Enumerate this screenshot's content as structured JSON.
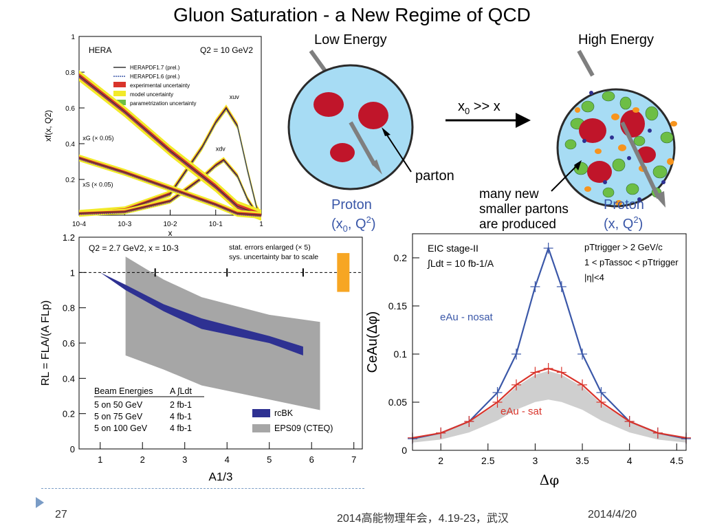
{
  "title": "Gluon Saturation - a New Regime of QCD",
  "footer": {
    "page_number": "27",
    "conference": "2014高能物理年会，4.19-23，武汉",
    "date": "2014/4/20"
  },
  "schematic": {
    "low_energy_label": "Low Energy",
    "high_energy_label": "High Energy",
    "arrow_label": "x0 >> x",
    "parton_label": "parton",
    "new_partons_label": [
      "many new",
      "smaller partons",
      "are produced"
    ],
    "proton_low": [
      "Proton",
      "(x0, Q2)"
    ],
    "proton_high": [
      "Proton",
      "(x, Q2)"
    ]
  },
  "chart_data": [
    {
      "type": "line",
      "title": "HERA",
      "annotation": "Q2 = 10 GeV2",
      "xlabel": "x",
      "ylabel": "xf(x, Q2)",
      "xscale": "log",
      "xlim": [
        0.0001,
        1
      ],
      "ylim": [
        0,
        1
      ],
      "x_ticks": [
        "10-4",
        "10-3",
        "10-2",
        "10-1",
        "1"
      ],
      "y_ticks": [
        "0.2",
        "0.4",
        "0.6",
        "0.8",
        "1"
      ],
      "legend": [
        "HERAPDF1.7 (prel.)",
        "HERAPDF1.6 (prel.)",
        "experimental uncertainty",
        "model uncertainty",
        "parametrization uncertainty"
      ],
      "series": [
        {
          "name": "xuv",
          "x": [
            0.0001,
            0.001,
            0.01,
            0.05,
            0.1,
            0.17,
            0.3,
            0.5,
            0.8,
            1
          ],
          "y": [
            0.01,
            0.03,
            0.12,
            0.38,
            0.52,
            0.6,
            0.5,
            0.25,
            0.04,
            0
          ]
        },
        {
          "name": "xdv",
          "x": [
            0.0001,
            0.001,
            0.01,
            0.05,
            0.1,
            0.15,
            0.3,
            0.5,
            0.8,
            1
          ],
          "y": [
            0.01,
            0.02,
            0.08,
            0.21,
            0.28,
            0.31,
            0.22,
            0.09,
            0.01,
            0
          ]
        },
        {
          "name": "xG (× 0.05)",
          "x": [
            0.0001,
            0.001,
            0.01,
            0.1,
            0.3,
            1
          ],
          "y": [
            0.78,
            0.58,
            0.36,
            0.16,
            0.05,
            0
          ]
        },
        {
          "name": "xS (× 0.05)",
          "x": [
            0.0001,
            0.001,
            0.01,
            0.1,
            0.3,
            1
          ],
          "y": [
            0.32,
            0.24,
            0.15,
            0.06,
            0.01,
            0
          ]
        }
      ]
    },
    {
      "type": "area",
      "annotation": "Q2 = 2.7 GeV2, x = 10-3",
      "note": [
        "stat. errors enlarged (× 5)",
        "sys. uncertainty bar to scale"
      ],
      "xlabel": "A1/3",
      "ylabel": "RL = FLA/(A FLp)",
      "xlim": [
        0.5,
        7.2
      ],
      "ylim": [
        0,
        1.2
      ],
      "x_ticks": [
        "1",
        "2",
        "3",
        "4",
        "5",
        "6",
        "7"
      ],
      "y_ticks": [
        "0",
        "0.2",
        "0.4",
        "0.6",
        "0.8",
        "1",
        "1.2"
      ],
      "legend": [
        "rcBK",
        "EPS09 (CTEQ)"
      ],
      "table": {
        "headers": [
          "Beam Energies",
          "A ∫Ldt"
        ],
        "rows": [
          [
            "5 on 50 GeV",
            "2 fb-1"
          ],
          [
            "5 on 75 GeV",
            "4 fb-1"
          ],
          [
            "5 on 100 GeV",
            "4 fb-1"
          ]
        ]
      },
      "series": [
        {
          "name": "rcBK",
          "x": [
            1,
            1.6,
            2.5,
            3.4,
            5,
            5.8
          ],
          "upper": [
            1.0,
            0.93,
            0.82,
            0.74,
            0.64,
            0.58
          ],
          "lower": [
            1.0,
            0.9,
            0.78,
            0.68,
            0.6,
            0.53
          ]
        },
        {
          "name": "EPS09 (CTEQ)",
          "x": [
            1.6,
            2.5,
            3.4,
            5,
            6.2
          ],
          "upper": [
            1.09,
            0.96,
            0.86,
            0.76,
            0.72
          ],
          "lower": [
            0.53,
            0.45,
            0.36,
            0.28,
            0.22
          ]
        }
      ]
    },
    {
      "type": "line",
      "annotation": [
        "EIC stage-II",
        "∫Ldt = 10 fb-1/A"
      ],
      "cuts": [
        "pTtrigger > 2 GeV/c",
        "1 < pTassoc < pTtrigger",
        "|η|<4"
      ],
      "xlabel": "Δφ",
      "ylabel": "CeAu(Δφ)",
      "xlim": [
        1.7,
        4.6
      ],
      "ylim": [
        0,
        0.225
      ],
      "x_ticks": [
        "2",
        "2.5",
        "3",
        "3.5",
        "4",
        "4.5"
      ],
      "y_ticks": [
        "0",
        "0.05",
        "0.1",
        "0.15",
        "0.2"
      ],
      "series": [
        {
          "name": "eAu - nosat",
          "color": "#3a57a8",
          "x": [
            1.7,
            2.0,
            2.3,
            2.6,
            2.8,
            3.0,
            3.14,
            3.28,
            3.5,
            3.7,
            4.0,
            4.3,
            4.6
          ],
          "y": [
            0.012,
            0.018,
            0.03,
            0.06,
            0.1,
            0.17,
            0.21,
            0.17,
            0.1,
            0.06,
            0.03,
            0.018,
            0.012
          ]
        },
        {
          "name": "eAu - sat",
          "color": "#d9342b",
          "x": [
            1.7,
            2.0,
            2.3,
            2.6,
            2.8,
            3.0,
            3.14,
            3.28,
            3.5,
            3.7,
            4.0,
            4.3,
            4.6
          ],
          "y": [
            0.013,
            0.018,
            0.03,
            0.05,
            0.068,
            0.081,
            0.085,
            0.081,
            0.068,
            0.05,
            0.03,
            0.018,
            0.013
          ]
        }
      ]
    }
  ]
}
